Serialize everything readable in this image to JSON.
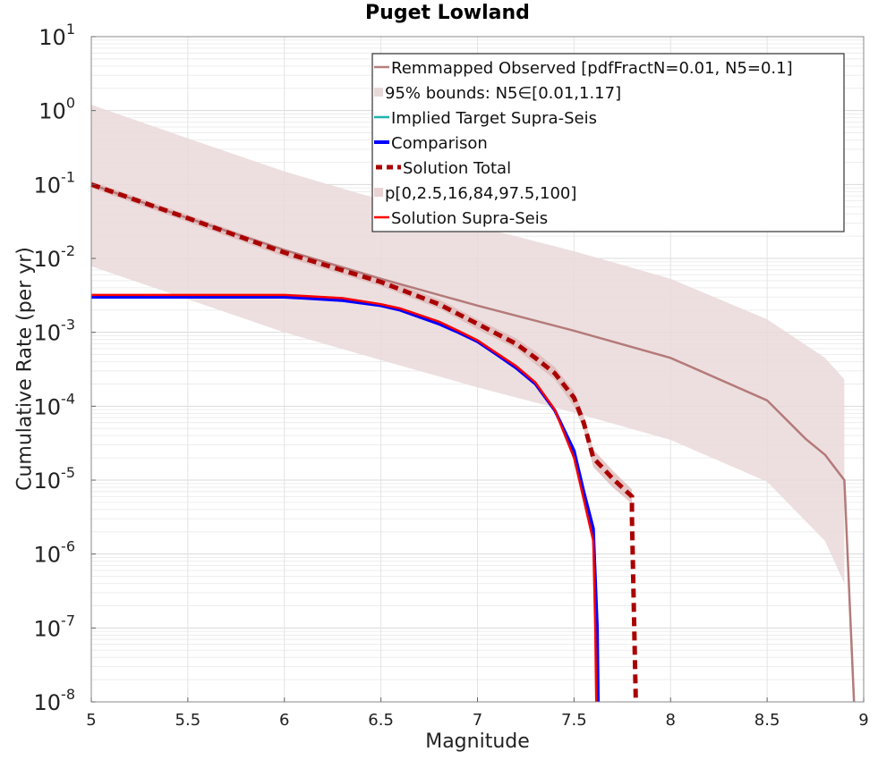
{
  "chart_data": {
    "type": "line",
    "title": "Puget Lowland",
    "xlabel": "Magnitude",
    "ylabel": "Cumulative Rate (per yr)",
    "xlim": [
      5,
      9
    ],
    "ylim_log10": [
      -8,
      1
    ],
    "yscale": "log",
    "grid": true,
    "legend_position": "top-right",
    "x_ticks": [
      "5",
      "5.5",
      "6",
      "6.5",
      "7",
      "7.5",
      "8",
      "8.5",
      "9"
    ],
    "y_tick_exponents": [
      "1",
      "0",
      "-1",
      "-2",
      "-3",
      "-4",
      "-5",
      "-6",
      "-7",
      "-8"
    ],
    "y_tick_base": "10",
    "legend": [
      {
        "label": "Remmapped Observed [pdfFractN=0.01, N5=0.1]",
        "color": "#b87f7f",
        "style": "line"
      },
      {
        "label": "95% bounds: N5∈[0.01,1.17]",
        "color": "#e8d8d8",
        "style": "band"
      },
      {
        "label": "Implied Target Supra-Seis",
        "color": "#20b2aa",
        "style": "line"
      },
      {
        "label": "Comparison",
        "color": "#0000ff",
        "style": "thick"
      },
      {
        "label": "Solution Total",
        "color": "#aa0000",
        "style": "dashed"
      },
      {
        "label": "p[0,2.5,16,84,97.5,100]",
        "color": "#e8d2d2",
        "style": "band"
      },
      {
        "label": "Solution Supra-Seis",
        "color": "#ff0000",
        "style": "line"
      }
    ],
    "series": [
      {
        "name": "Remmapped Observed [pdfFractN=0.01, N5=0.1]",
        "x": [
          5.0,
          5.5,
          6.0,
          6.5,
          7.0,
          7.5,
          8.0,
          8.5,
          8.7,
          8.8,
          8.9,
          8.95
        ],
        "y": [
          0.1,
          0.035,
          0.013,
          0.0053,
          0.0023,
          0.00105,
          0.00045,
          0.00012,
          3.6e-05,
          2.2e-05,
          1e-05,
          1e-08
        ]
      },
      {
        "name": "95% bounds: N5∈[0.01,1.17]",
        "x": [
          5.0,
          5.5,
          6.0,
          6.5,
          7.0,
          7.5,
          8.0,
          8.5,
          8.8,
          8.9
        ],
        "upper": [
          1.2,
          0.42,
          0.15,
          0.062,
          0.027,
          0.0125,
          0.0053,
          0.0015,
          0.00045,
          0.00023
        ],
        "lower": [
          0.0078,
          0.0028,
          0.001,
          0.00042,
          0.00018,
          8.2e-05,
          3.5e-05,
          9.5e-06,
          1.5e-06,
          4e-07
        ]
      },
      {
        "name": "Comparison",
        "x": [
          5.0,
          6.0,
          6.1,
          6.3,
          6.5,
          6.6,
          6.8,
          6.9,
          7.0,
          7.1,
          7.2,
          7.3,
          7.4,
          7.5,
          7.55,
          7.6,
          7.62,
          7.625
        ],
        "y": [
          0.003,
          0.003,
          0.0029,
          0.0027,
          0.0023,
          0.002,
          0.0013,
          0.001,
          0.00075,
          0.0005,
          0.00033,
          0.0002,
          8.8e-05,
          2.5e-05,
          7e-06,
          2.2e-06,
          1e-07,
          1e-08
        ]
      },
      {
        "name": "Solution Total",
        "x": [
          5.0,
          5.5,
          6.0,
          6.5,
          6.8,
          7.0,
          7.2,
          7.3,
          7.4,
          7.5,
          7.55,
          7.6,
          7.7,
          7.8,
          7.8,
          7.82
        ],
        "y": [
          0.1,
          0.035,
          0.012,
          0.0048,
          0.0024,
          0.0013,
          0.0007,
          0.00045,
          0.00028,
          0.00013,
          6e-05,
          2e-05,
          1.05e-05,
          6e-06,
          3e-06,
          1e-08
        ]
      },
      {
        "name": "p[0,2.5,16,84,97.5,100]",
        "x": [
          5.0,
          5.5,
          6.0,
          6.5,
          6.8,
          7.0,
          7.2,
          7.3,
          7.4,
          7.5,
          7.55,
          7.6,
          7.7,
          7.8
        ],
        "upper": [
          0.11,
          0.039,
          0.0135,
          0.0055,
          0.0028,
          0.0015,
          0.00083,
          0.00055,
          0.00034,
          0.00016,
          7.5e-05,
          2.6e-05,
          1.35e-05,
          7.5e-06
        ],
        "lower": [
          0.09,
          0.031,
          0.0105,
          0.0042,
          0.0021,
          0.0011,
          0.0006,
          0.00037,
          0.00023,
          0.0001,
          4.8e-05,
          1.5e-05,
          8e-06,
          4.8e-06
        ]
      },
      {
        "name": "Solution Supra-Seis",
        "x": [
          5.0,
          6.0,
          6.1,
          6.3,
          6.5,
          6.6,
          6.8,
          6.9,
          7.0,
          7.1,
          7.2,
          7.3,
          7.4,
          7.5,
          7.55,
          7.6,
          7.61,
          7.615
        ],
        "y": [
          0.0032,
          0.0032,
          0.0031,
          0.0029,
          0.0024,
          0.0021,
          0.0014,
          0.00105,
          0.00078,
          0.00052,
          0.00035,
          0.00021,
          9e-05,
          2e-05,
          5.5e-06,
          1.5e-06,
          1e-07,
          1e-08
        ]
      }
    ]
  }
}
